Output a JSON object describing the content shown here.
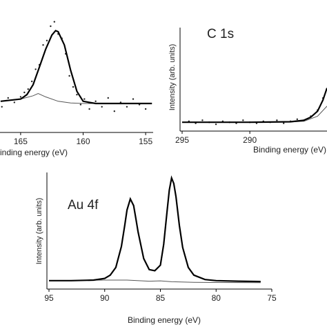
{
  "chart_data": [
    {
      "type": "line",
      "xlabel": "inding energy (eV)",
      "xlim": [
        166.65,
        154.4
      ],
      "ylim": [
        0,
        100
      ],
      "xticks": [
        165,
        160,
        155
      ],
      "series": [
        {
          "mode": "markers",
          "color": "#222222",
          "x": [
            166.5,
            166,
            165.5,
            165,
            164.7,
            164.4,
            164.1,
            163.8,
            163.5,
            163.2,
            162.9,
            162.6,
            162.3,
            162.0,
            161.7,
            161.4,
            161.1,
            160.8,
            160.5,
            160.2,
            159.9,
            159.5,
            159,
            158.5,
            158,
            157.5,
            157,
            156.5,
            156,
            155.5,
            155
          ],
          "values": [
            22,
            30,
            26,
            31,
            35,
            38,
            45,
            56,
            60,
            78,
            82,
            95,
            99,
            88,
            84,
            70,
            50,
            40,
            33,
            24,
            29,
            20,
            27,
            22,
            30,
            18,
            26,
            22,
            29,
            24,
            20
          ]
        },
        {
          "mode": "line",
          "color": "#555555",
          "width": 1,
          "x": [
            166.6,
            165,
            164,
            163.6,
            163,
            162,
            161,
            160,
            157,
            154.5
          ],
          "values": [
            27,
            29,
            32,
            34,
            31,
            27,
            25.5,
            25,
            25,
            25
          ]
        },
        {
          "mode": "line",
          "color": "#000000",
          "width": 2.2,
          "x": [
            166.6,
            165,
            164.5,
            164,
            163.5,
            163,
            162.5,
            162.2,
            162,
            161.5,
            161,
            160.5,
            160,
            159,
            157,
            155,
            154.5
          ],
          "values": [
            27,
            29,
            33,
            42,
            58,
            74,
            87,
            91,
            90,
            78,
            55,
            36,
            27,
            25,
            25,
            25,
            25
          ]
        }
      ]
    },
    {
      "type": "line",
      "title": "C 1s",
      "xlabel": "Binding energy (eV)",
      "ylabel": "Intensity (arb. units)",
      "xlim": [
        295,
        284.3
      ],
      "ylim": [
        0,
        100
      ],
      "xticks": [
        295,
        290
      ],
      "series": [
        {
          "mode": "markers",
          "color": "#222222",
          "x": [
            294.5,
            294,
            293.5,
            293,
            292.5,
            292,
            291.5,
            291,
            290.5,
            290,
            289.5,
            289,
            288.5,
            288,
            287.5,
            287,
            286.5,
            286,
            285.5,
            285,
            284.6
          ],
          "values": [
            7,
            5,
            8,
            6,
            4,
            7,
            6,
            5,
            8,
            6,
            5,
            7,
            6,
            8,
            5,
            7,
            9,
            8,
            12,
            18,
            30
          ]
        },
        {
          "mode": "line",
          "color": "#555555",
          "width": 1,
          "x": [
            295,
            287,
            286,
            285,
            284.3
          ],
          "values": [
            6,
            6.2,
            7,
            12,
            22
          ]
        },
        {
          "mode": "line",
          "color": "#000000",
          "width": 2.2,
          "x": [
            295,
            290,
            287,
            286,
            285.5,
            285,
            284.6,
            284.3
          ],
          "values": [
            6,
            6,
            6.5,
            8,
            11,
            17,
            28,
            40
          ]
        }
      ]
    },
    {
      "type": "line",
      "title": "Au 4f",
      "xlabel": "Binding energy (eV)",
      "ylabel": "Intensity (arb. units)",
      "xlim": [
        95,
        75
      ],
      "ylim": [
        0,
        100
      ],
      "xticks": [
        95,
        90,
        85,
        80,
        75
      ],
      "series": [
        {
          "mode": "line",
          "color": "#555555",
          "width": 1,
          "x": [
            95,
            90,
            88,
            86,
            85,
            84,
            82,
            80,
            76
          ],
          "values": [
            2,
            2.5,
            2.5,
            1.5,
            1.8,
            1,
            0.5,
            0.3,
            0.2
          ]
        },
        {
          "mode": "line",
          "color": "#000000",
          "width": 2.2,
          "x": [
            95,
            93,
            91,
            90,
            89.5,
            89,
            88.5,
            88.2,
            88,
            87.7,
            87.4,
            87.2,
            87,
            86.5,
            86,
            85.5,
            85,
            84.7,
            84.4,
            84.2,
            84,
            83.8,
            83.6,
            83.3,
            83,
            82.5,
            82,
            81,
            80,
            78,
            76
          ],
          "values": [
            2,
            2,
            2.5,
            4,
            7,
            14,
            33,
            52,
            66,
            76,
            70,
            58,
            46,
            22,
            12,
            11,
            16,
            35,
            65,
            84,
            95,
            90,
            78,
            52,
            32,
            14,
            7,
            3,
            2,
            1.5,
            1.2
          ]
        }
      ]
    }
  ]
}
